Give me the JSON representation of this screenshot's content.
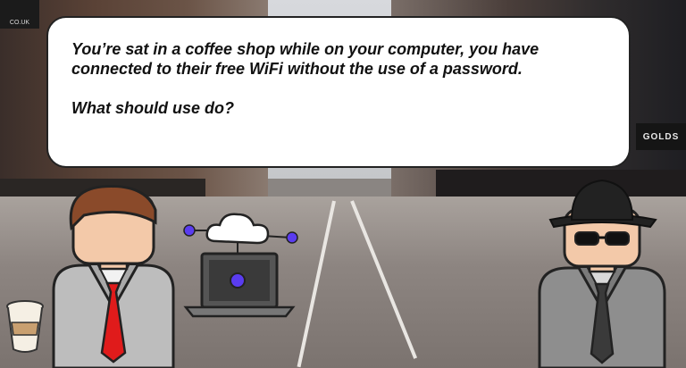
{
  "scene": {
    "sign_left_text": "CO.UK",
    "sign_right_text": "GOLDS"
  },
  "dialogue": {
    "line1": "You’re sat in a coffee shop while on your computer, you have connected to their free WiFi without the use of a password.",
    "question": "What should use do?"
  },
  "colors": {
    "bubble_fill": "#ffffff",
    "node_color": "#5a3cf0",
    "tie_red": "#e01b1b"
  },
  "icons": {
    "cloud": "cloud-icon",
    "laptop": "laptop-icon",
    "coffee": "coffee-cup-icon"
  }
}
